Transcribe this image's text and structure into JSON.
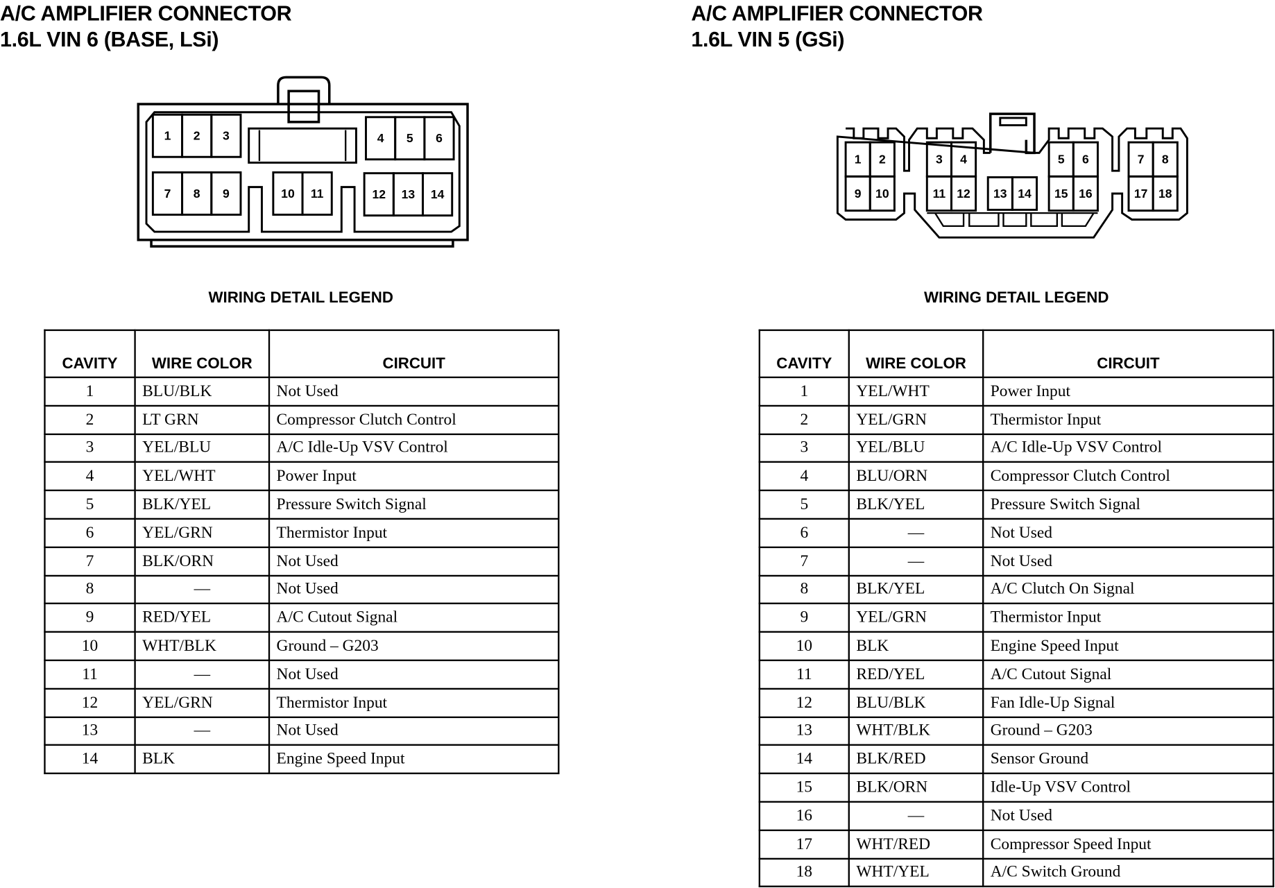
{
  "left": {
    "title_line1": "A/C AMPLIFIER CONNECTOR",
    "title_line2": "1.6L VIN 6 (BASE, LSi)",
    "legend_title": "WIRING DETAIL LEGEND",
    "headers": {
      "cavity": "CAVITY",
      "wire_color": "WIRE COLOR",
      "circuit": "CIRCUIT"
    },
    "rows": [
      {
        "cavity": "1",
        "color": "BLU/BLK",
        "circuit": "Not Used"
      },
      {
        "cavity": "2",
        "color": "LT GRN",
        "circuit": "Compressor Clutch Control"
      },
      {
        "cavity": "3",
        "color": "YEL/BLU",
        "circuit": "A/C Idle-Up VSV Control"
      },
      {
        "cavity": "4",
        "color": "YEL/WHT",
        "circuit": "Power Input"
      },
      {
        "cavity": "5",
        "color": "BLK/YEL",
        "circuit": "Pressure Switch Signal"
      },
      {
        "cavity": "6",
        "color": "YEL/GRN",
        "circuit": "Thermistor Input"
      },
      {
        "cavity": "7",
        "color": "BLK/ORN",
        "circuit": "Not Used"
      },
      {
        "cavity": "8",
        "color": "—",
        "circuit": "Not Used"
      },
      {
        "cavity": "9",
        "color": "RED/YEL",
        "circuit": "A/C Cutout Signal"
      },
      {
        "cavity": "10",
        "color": "WHT/BLK",
        "circuit": "Ground – G203"
      },
      {
        "cavity": "11",
        "color": "—",
        "circuit": "Not Used"
      },
      {
        "cavity": "12",
        "color": "YEL/GRN",
        "circuit": "Thermistor Input"
      },
      {
        "cavity": "13",
        "color": "—",
        "circuit": "Not Used"
      },
      {
        "cavity": "14",
        "color": "BLK",
        "circuit": "Engine Speed Input"
      }
    ]
  },
  "right": {
    "title_line1": "A/C AMPLIFIER CONNECTOR",
    "title_line2": "1.6L VIN 5 (GSi)",
    "legend_title": "WIRING DETAIL LEGEND",
    "headers": {
      "cavity": "CAVITY",
      "wire_color": "WIRE COLOR",
      "circuit": "CIRCUIT"
    },
    "rows": [
      {
        "cavity": "1",
        "color": "YEL/WHT",
        "circuit": "Power Input"
      },
      {
        "cavity": "2",
        "color": "YEL/GRN",
        "circuit": "Thermistor Input"
      },
      {
        "cavity": "3",
        "color": "YEL/BLU",
        "circuit": "A/C Idle-Up VSV Control"
      },
      {
        "cavity": "4",
        "color": "BLU/ORN",
        "circuit": "Compressor Clutch Control"
      },
      {
        "cavity": "5",
        "color": "BLK/YEL",
        "circuit": "Pressure Switch Signal"
      },
      {
        "cavity": "6",
        "color": "—",
        "circuit": "Not Used"
      },
      {
        "cavity": "7",
        "color": "—",
        "circuit": "Not Used"
      },
      {
        "cavity": "8",
        "color": "BLK/YEL",
        "circuit": "A/C Clutch On Signal"
      },
      {
        "cavity": "9",
        "color": "YEL/GRN",
        "circuit": "Thermistor Input"
      },
      {
        "cavity": "10",
        "color": "BLK",
        "circuit": "Engine Speed Input"
      },
      {
        "cavity": "11",
        "color": "RED/YEL",
        "circuit": "A/C Cutout Signal"
      },
      {
        "cavity": "12",
        "color": "BLU/BLK",
        "circuit": "Fan Idle-Up Signal"
      },
      {
        "cavity": "13",
        "color": "WHT/BLK",
        "circuit": "Ground – G203"
      },
      {
        "cavity": "14",
        "color": "BLK/RED",
        "circuit": "Sensor Ground"
      },
      {
        "cavity": "15",
        "color": "BLK/ORN",
        "circuit": "Idle-Up VSV Control"
      },
      {
        "cavity": "16",
        "color": "—",
        "circuit": "Not Used"
      },
      {
        "cavity": "17",
        "color": "WHT/RED",
        "circuit": "Compressor Speed Input"
      },
      {
        "cavity": "18",
        "color": "WHT/YEL",
        "circuit": "A/C Switch Ground"
      }
    ]
  }
}
